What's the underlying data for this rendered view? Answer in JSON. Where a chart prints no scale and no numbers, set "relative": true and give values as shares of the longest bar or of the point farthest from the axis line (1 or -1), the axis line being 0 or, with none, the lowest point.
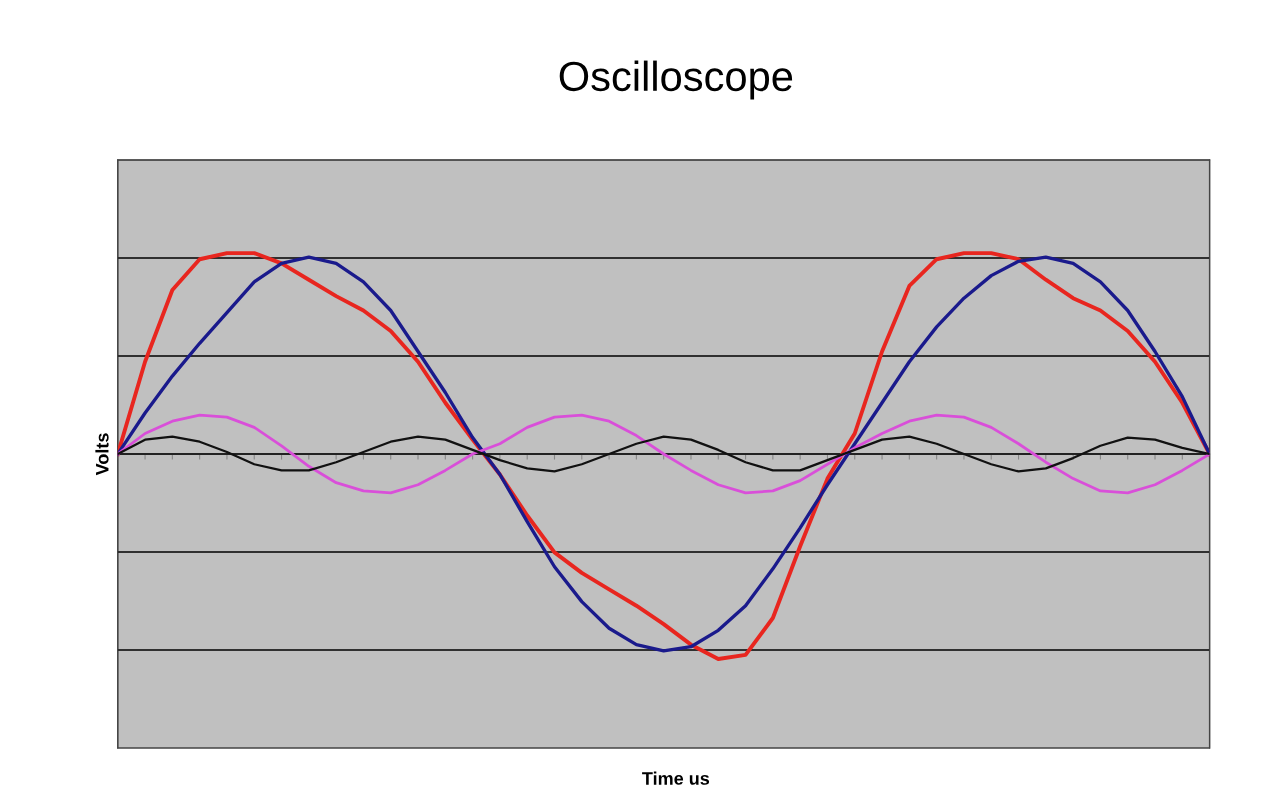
{
  "chart_data": {
    "type": "line",
    "title": "Oscilloscope",
    "annotations": [
      "Time us"
    ],
    "ylabel": "Volts",
    "relative": true,
    "grid": "y",
    "legend": false,
    "categories": [
      null,
      null,
      null,
      null,
      null,
      null,
      null,
      null,
      null,
      null,
      null,
      null,
      null,
      null,
      null,
      null,
      null,
      null,
      null,
      null,
      null,
      null,
      null,
      null,
      null,
      null,
      null,
      null,
      null,
      null,
      null,
      null,
      null,
      null,
      null,
      null,
      null,
      null,
      null,
      null,
      null
    ],
    "series": [
      {
        "color": "#e8261f",
        "values": [
          0,
          0.45,
          0.8,
          0.95,
          0.98,
          0.98,
          0.93,
          0.85,
          0.77,
          0.7,
          0.6,
          0.45,
          0.25,
          0.07,
          -0.1,
          -0.3,
          -0.48,
          -0.58,
          -0.66,
          -0.74,
          -0.83,
          -0.93,
          -1.0,
          -0.98,
          -0.8,
          -0.45,
          -0.12,
          0.1,
          0.5,
          0.82,
          0.95,
          0.98,
          0.98,
          0.95,
          0.85,
          0.76,
          0.7,
          0.6,
          0.45,
          0.25,
          0
        ]
      },
      {
        "color": "#1a1a8c",
        "values": [
          0,
          0.2,
          0.38,
          0.54,
          0.69,
          0.84,
          0.93,
          0.96,
          0.93,
          0.84,
          0.7,
          0.5,
          0.3,
          0.08,
          -0.1,
          -0.33,
          -0.55,
          -0.72,
          -0.85,
          -0.93,
          -0.96,
          -0.94,
          -0.86,
          -0.74,
          -0.56,
          -0.36,
          -0.15,
          0.05,
          0.25,
          0.45,
          0.62,
          0.76,
          0.87,
          0.94,
          0.96,
          0.93,
          0.84,
          0.7,
          0.5,
          0.28,
          0
        ]
      },
      {
        "color": "#d94fd9",
        "values": [
          0,
          0.1,
          0.16,
          0.19,
          0.18,
          0.13,
          0.04,
          -0.06,
          -0.14,
          -0.18,
          -0.19,
          -0.15,
          -0.08,
          0.0,
          0.05,
          0.13,
          0.18,
          0.19,
          0.16,
          0.09,
          0.0,
          -0.08,
          -0.15,
          -0.19,
          -0.18,
          -0.13,
          -0.05,
          0.03,
          0.1,
          0.16,
          0.19,
          0.18,
          0.13,
          0.05,
          -0.04,
          -0.12,
          -0.18,
          -0.19,
          -0.15,
          -0.08,
          0
        ]
      },
      {
        "color": "#111111",
        "values": [
          0,
          0.07,
          0.085,
          0.06,
          0.01,
          -0.05,
          -0.08,
          -0.08,
          -0.04,
          0.01,
          0.06,
          0.085,
          0.07,
          0.02,
          -0.03,
          -0.07,
          -0.085,
          -0.05,
          0.0,
          0.05,
          0.085,
          0.07,
          0.02,
          -0.04,
          -0.08,
          -0.08,
          -0.03,
          0.02,
          0.07,
          0.085,
          0.05,
          0.0,
          -0.05,
          -0.085,
          -0.07,
          -0.02,
          0.04,
          0.08,
          0.07,
          0.03,
          0
        ]
      }
    ]
  }
}
